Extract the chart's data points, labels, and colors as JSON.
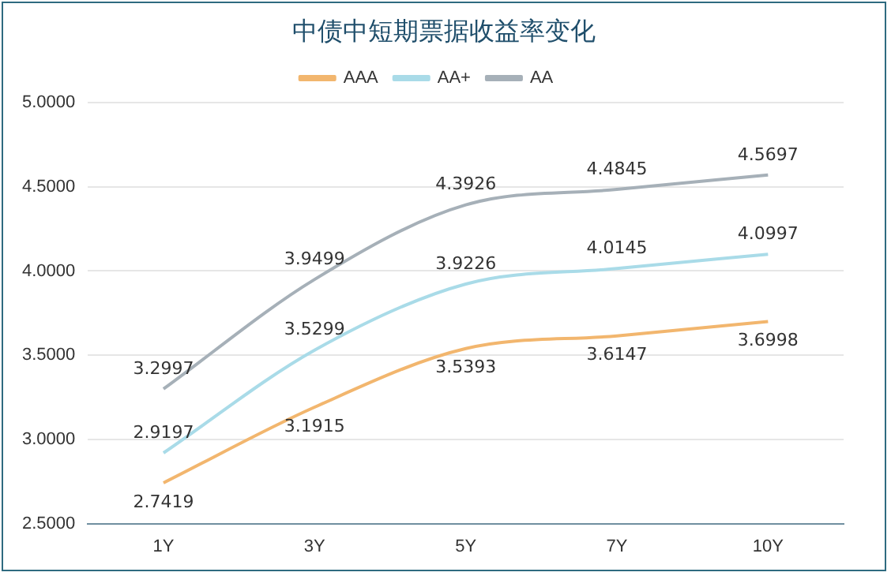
{
  "chart_data": {
    "type": "line",
    "title": "中债中短期票据收益率变化",
    "categories": [
      "1Y",
      "3Y",
      "5Y",
      "7Y",
      "10Y"
    ],
    "series": [
      {
        "name": "AAA",
        "color": "#f2b66e",
        "values": [
          2.7419,
          3.1915,
          3.5393,
          3.6147,
          3.6998
        ]
      },
      {
        "name": "AA+",
        "color": "#a9dbe8",
        "values": [
          2.9197,
          3.5299,
          3.9226,
          4.0145,
          4.0997
        ]
      },
      {
        "name": "AA",
        "color": "#a6b0b8",
        "values": [
          3.2997,
          3.9499,
          4.3926,
          4.4845,
          4.5697
        ]
      }
    ],
    "ylim": [
      2.5,
      5
    ],
    "yticks": [
      {
        "value": 2.5,
        "label": "2.5000"
      },
      {
        "value": 3,
        "label": "3.0000"
      },
      {
        "value": 3.5,
        "label": "3.5000"
      },
      {
        "value": 4,
        "label": "4.0000"
      },
      {
        "value": 4.5,
        "label": "4.5000"
      },
      {
        "value": 5,
        "label": "5.0000"
      }
    ],
    "grid": "y",
    "legend": "top",
    "marker": "none",
    "line_style": "solid",
    "data_labels": true
  }
}
